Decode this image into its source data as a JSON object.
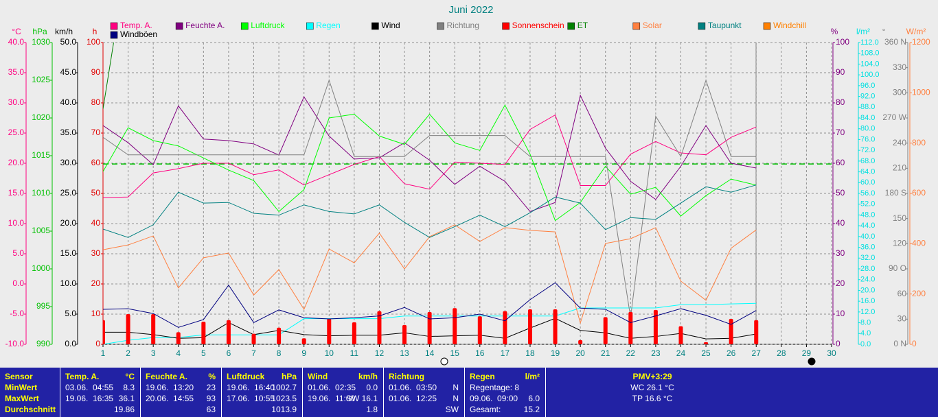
{
  "chart_data": {
    "type": "line",
    "title": "Juni 2022",
    "x": [
      1,
      2,
      3,
      4,
      5,
      6,
      7,
      8,
      9,
      10,
      11,
      12,
      13,
      14,
      15,
      16,
      17,
      18,
      19,
      20,
      21,
      22,
      23,
      24,
      25,
      26,
      27
    ],
    "xlim": [
      1,
      30
    ],
    "xticks": [
      1,
      2,
      3,
      4,
      5,
      6,
      7,
      8,
      9,
      10,
      11,
      12,
      13,
      14,
      15,
      16,
      17,
      18,
      19,
      20,
      21,
      22,
      23,
      24,
      25,
      26,
      27,
      28,
      29,
      30
    ],
    "grid": true,
    "axes": {
      "temp": {
        "label": "°C",
        "color": "#ff0080",
        "lim": [
          -10,
          40
        ],
        "ticks": [
          {
            "value": -10,
            "label": "-10.0"
          },
          {
            "value": -5,
            "label": "-5.0"
          },
          {
            "value": 0,
            "label": "0.0"
          },
          {
            "value": 5,
            "label": "5.0"
          },
          {
            "value": 10,
            "label": "10.0"
          },
          {
            "value": 15,
            "label": "15.0"
          },
          {
            "value": 20,
            "label": "20.0"
          },
          {
            "value": 25,
            "label": "25.0"
          },
          {
            "value": 30,
            "label": "30.0"
          },
          {
            "value": 35,
            "label": "35.0"
          },
          {
            "value": 40,
            "label": "40.0"
          }
        ]
      },
      "pressure": {
        "label": "hPa",
        "color": "#00c000",
        "lim": [
          990,
          1030
        ],
        "ticks": [
          990,
          995,
          1000,
          1005,
          1010,
          1015,
          1020,
          1025,
          1030
        ]
      },
      "wind": {
        "label": "km/h",
        "color": "#000000",
        "lim": [
          0,
          50
        ],
        "ticks": [
          {
            "value": 0,
            "label": "0.0"
          },
          {
            "value": 5,
            "label": "5.0"
          },
          {
            "value": 10,
            "label": "10.0"
          },
          {
            "value": 15,
            "label": "15.0"
          },
          {
            "value": 20,
            "label": "20.0"
          },
          {
            "value": 25,
            "label": "25.0"
          },
          {
            "value": 30,
            "label": "30.0"
          },
          {
            "value": 35,
            "label": "35.0"
          },
          {
            "value": 40,
            "label": "40.0"
          },
          {
            "value": 45,
            "label": "45.0"
          },
          {
            "value": 50,
            "label": "50.0"
          }
        ]
      },
      "hours": {
        "label": "h",
        "color": "#e00000",
        "lim": [
          0,
          100
        ],
        "ticks": [
          0,
          10,
          20,
          30,
          40,
          50,
          60,
          70,
          80,
          90,
          100
        ]
      },
      "humidity": {
        "label": "%",
        "color": "#800080",
        "lim": [
          0,
          100
        ],
        "ticks": [
          0,
          10,
          20,
          30,
          40,
          50,
          60,
          70,
          80,
          90,
          100
        ]
      },
      "rain": {
        "label": "l/m²",
        "color": "#00e0e0",
        "lim": [
          0,
          112
        ],
        "ticks": [
          {
            "value": 0,
            "label": "0.0"
          },
          {
            "value": 4,
            "label": "4.0"
          },
          {
            "value": 8,
            "label": "8.0"
          },
          {
            "value": 12,
            "label": "12.0"
          },
          {
            "value": 16,
            "label": "16.0"
          },
          {
            "value": 20,
            "label": "20.0"
          },
          {
            "value": 24,
            "label": "24.0"
          },
          {
            "value": 28,
            "label": "28.0"
          },
          {
            "value": 32,
            "label": "32.0"
          },
          {
            "value": 36,
            "label": "36.0"
          },
          {
            "value": 40,
            "label": "40.0"
          },
          {
            "value": 44,
            "label": "44.0"
          },
          {
            "value": 48,
            "label": "48.0"
          },
          {
            "value": 52,
            "label": "52.0"
          },
          {
            "value": 56,
            "label": "56.0"
          },
          {
            "value": 60,
            "label": "60.0"
          },
          {
            "value": 64,
            "label": "64.0"
          },
          {
            "value": 68,
            "label": "68.0"
          },
          {
            "value": 72,
            "label": "72.0"
          },
          {
            "value": 76,
            "label": "76.0"
          },
          {
            "value": 80,
            "label": "80.0"
          },
          {
            "value": 84,
            "label": "84.0"
          },
          {
            "value": 88,
            "label": "88.0"
          },
          {
            "value": 92,
            "label": "92.0"
          },
          {
            "value": 96,
            "label": "96.0"
          },
          {
            "value": 100,
            "label": "100.0"
          },
          {
            "value": 104,
            "label": "104.0"
          },
          {
            "value": 108,
            "label": "108.0"
          },
          {
            "value": 112,
            "label": "112.0"
          }
        ]
      },
      "direction": {
        "label": "°",
        "color": "#808080",
        "lim": [
          0,
          360
        ],
        "ticks": [
          {
            "value": 0,
            "label": "0 N"
          },
          30,
          60,
          {
            "value": 90,
            "label": "90 O"
          },
          120,
          150,
          {
            "value": 180,
            "label": "180 S"
          },
          210,
          240,
          {
            "value": 270,
            "label": "270 W"
          },
          300,
          330,
          {
            "value": 360,
            "label": "360 N"
          }
        ]
      },
      "solar": {
        "label": "W/m²",
        "color": "#ff8040",
        "lim": [
          0,
          1200
        ],
        "ticks": [
          0,
          200,
          400,
          600,
          800,
          1000,
          1200
        ]
      }
    },
    "series": [
      {
        "name": "Temp. A.",
        "color": "#ff0080",
        "axis": "temp",
        "values": [
          14.3,
          14.4,
          18.4,
          19.1,
          20,
          20,
          18.1,
          18.9,
          16.4,
          18.1,
          19.8,
          21.1,
          16.6,
          15.7,
          20.2,
          20,
          19.8,
          25.6,
          28,
          16.3,
          16.3,
          21.5,
          23.6,
          21.7,
          21.4,
          24.3,
          26
        ]
      },
      {
        "name": "Feuchte A.",
        "color": "#800080",
        "axis": "humidity",
        "values": [
          72.5,
          66.8,
          59.5,
          79,
          68,
          67.5,
          66.4,
          62.7,
          82,
          69,
          61.4,
          61.8,
          66.8,
          61,
          53,
          59,
          54,
          44,
          47,
          82.5,
          65,
          54,
          48,
          59,
          72.5,
          60,
          58.4
        ]
      },
      {
        "name": "Luftdruck",
        "color": "#00ff00",
        "axis": "pressure",
        "values": [
          1012.9,
          1018.7,
          1017,
          1016.3,
          1014.7,
          1013.1,
          1011.7,
          1007.6,
          1010.5,
          1020,
          1020.5,
          1017.6,
          1016.5,
          1020.5,
          1016.7,
          1015.7,
          1021.7,
          1015.2,
          1006.4,
          1008.8,
          1013.6,
          1009.9,
          1010.8,
          1007,
          1009.7,
          1011.9,
          1011.1
        ]
      },
      {
        "name": "Regen",
        "color": "#00ffff",
        "axis": "rain",
        "values": [
          0,
          1.5,
          2.5,
          2.5,
          3.5,
          3.5,
          3.5,
          3.5,
          9.5,
          9.5,
          9.5,
          9.5,
          10.5,
          10.5,
          10.5,
          10.5,
          10.5,
          10.5,
          10.5,
          13.5,
          13.5,
          13.5,
          13.5,
          14.7,
          14.7,
          15,
          15.2
        ]
      },
      {
        "name": "Wind",
        "color": "#000000",
        "axis": "wind",
        "values": [
          2,
          2,
          1.6,
          1,
          1.1,
          3.6,
          1.6,
          2.3,
          1.6,
          1.4,
          1.5,
          1.5,
          1.9,
          1.3,
          1.4,
          1.5,
          1,
          2.7,
          4.3,
          2.3,
          1.9,
          1,
          1.3,
          1.8,
          0.9,
          1,
          1.7
        ]
      },
      {
        "name": "Richtung",
        "color": "#808080",
        "axis": "direction",
        "values": [
          247,
          226,
          226,
          226,
          226,
          226,
          226,
          226,
          226,
          315,
          224,
          224,
          224,
          249,
          249,
          249,
          249,
          224,
          224,
          224,
          224,
          32,
          272,
          224,
          315,
          224,
          224
        ]
      },
      {
        "name": "Sonnenschein",
        "color": "#ff0000",
        "axis": "hours",
        "kind": "bar",
        "values": [
          8,
          10,
          10,
          4,
          7.5,
          8,
          3.5,
          5.5,
          2,
          8.5,
          7.3,
          11,
          6.4,
          10.7,
          12,
          9.3,
          11,
          11.6,
          11.6,
          1.4,
          9,
          10.7,
          11.4,
          6,
          0.7,
          8.4,
          8
        ]
      },
      {
        "name": "ET",
        "color": "#008000",
        "axis": "hours",
        "values": [
          78,
          130,
          null,
          null,
          null,
          null,
          null,
          null,
          null,
          null,
          null,
          null,
          null,
          null,
          null,
          null,
          null,
          null,
          null,
          null,
          null,
          null,
          null,
          null,
          null,
          null,
          null
        ]
      },
      {
        "name": "Solar",
        "color": "#ff8040",
        "axis": "solar",
        "values": [
          376,
          395,
          431,
          224,
          344,
          363,
          196,
          297,
          139,
          379,
          324,
          442,
          300,
          428,
          475,
          409,
          464,
          453,
          447,
          85,
          401,
          420,
          464,
          251,
          175,
          382,
          455
        ]
      },
      {
        "name": "Taupunkt",
        "color": "#008080",
        "axis": "temp",
        "values": [
          9.1,
          7.7,
          9.8,
          15.2,
          13.4,
          13.5,
          11.7,
          11.4,
          13.1,
          12,
          11.6,
          13.1,
          10.2,
          7.7,
          9.5,
          11.4,
          9.5,
          11.8,
          14.4,
          13.4,
          9,
          11,
          10.7,
          13.4,
          16.1,
          15.2,
          16.4
        ]
      },
      {
        "name": "Windchill",
        "color": "#ff8000",
        "axis": "temp"
      },
      {
        "name": "Windböen",
        "color": "#000080",
        "axis": "wind",
        "values": [
          5.8,
          5.9,
          5.1,
          2.8,
          4.1,
          9.8,
          3.6,
          5.7,
          4.4,
          4.2,
          4.4,
          4.7,
          6.1,
          4.2,
          4.4,
          5,
          3.9,
          7.4,
          10.2,
          6,
          5.8,
          3.6,
          4.7,
          5.9,
          4.8,
          3.3,
          5.6
        ]
      }
    ],
    "reference_lines": [
      {
        "axis": "pressure",
        "value": 1013.9,
        "color": "#00c000"
      }
    ]
  },
  "table": {
    "columns": [
      {
        "title": "Sensor",
        "rows": [
          {
            "time": "MinWert"
          },
          {
            "time": "MaxWert"
          },
          {
            "time": "Durchschnitt"
          }
        ]
      },
      {
        "title": "Temp. A.",
        "unit": "°C",
        "rows": [
          {
            "time": "03.06.  04:55",
            "value": "8.3"
          },
          {
            "time": "19.06.  16:35",
            "value": "36.1"
          },
          {
            "value": "19.86"
          }
        ]
      },
      {
        "title": "Feuchte A.",
        "unit": "%",
        "rows": [
          {
            "time": "19.06.  13:20",
            "value": "23"
          },
          {
            "time": "20.06.  14:55",
            "value": "93"
          },
          {
            "value": "63"
          }
        ]
      },
      {
        "title": "Luftdruck",
        "unit": "hPa",
        "rows": [
          {
            "time": "19.06.  16:40",
            "value": "1002.7"
          },
          {
            "time": "17.06.  10:55",
            "value": "1023.5"
          },
          {
            "value": "1013.9"
          }
        ]
      },
      {
        "title": "Wind",
        "unit": "km/h",
        "rows": [
          {
            "time": "01.06.  02:35",
            "value": "0.0"
          },
          {
            "time": "19.06.  11:00",
            "value": "SW 16.1"
          },
          {
            "value": "1.8"
          }
        ]
      },
      {
        "title": "Richtung",
        "rows": [
          {
            "time": "01.06.  03:50",
            "value": "N"
          },
          {
            "time": "01.06.  12:25",
            "value": "N"
          },
          {
            "value": "SW"
          }
        ]
      },
      {
        "title": "Regen",
        "unit": "l/m²",
        "rows": [
          {
            "time": "Regentage: 8"
          },
          {
            "time": "09.06.  09:00",
            "value": "6.0"
          },
          {
            "time": "Gesamt:",
            "value": "15.2"
          }
        ]
      }
    ],
    "summary": {
      "title": "PMV+3:29",
      "lines": [
        "WC 26.1 °C",
        "TP 16.6 °C"
      ]
    }
  }
}
